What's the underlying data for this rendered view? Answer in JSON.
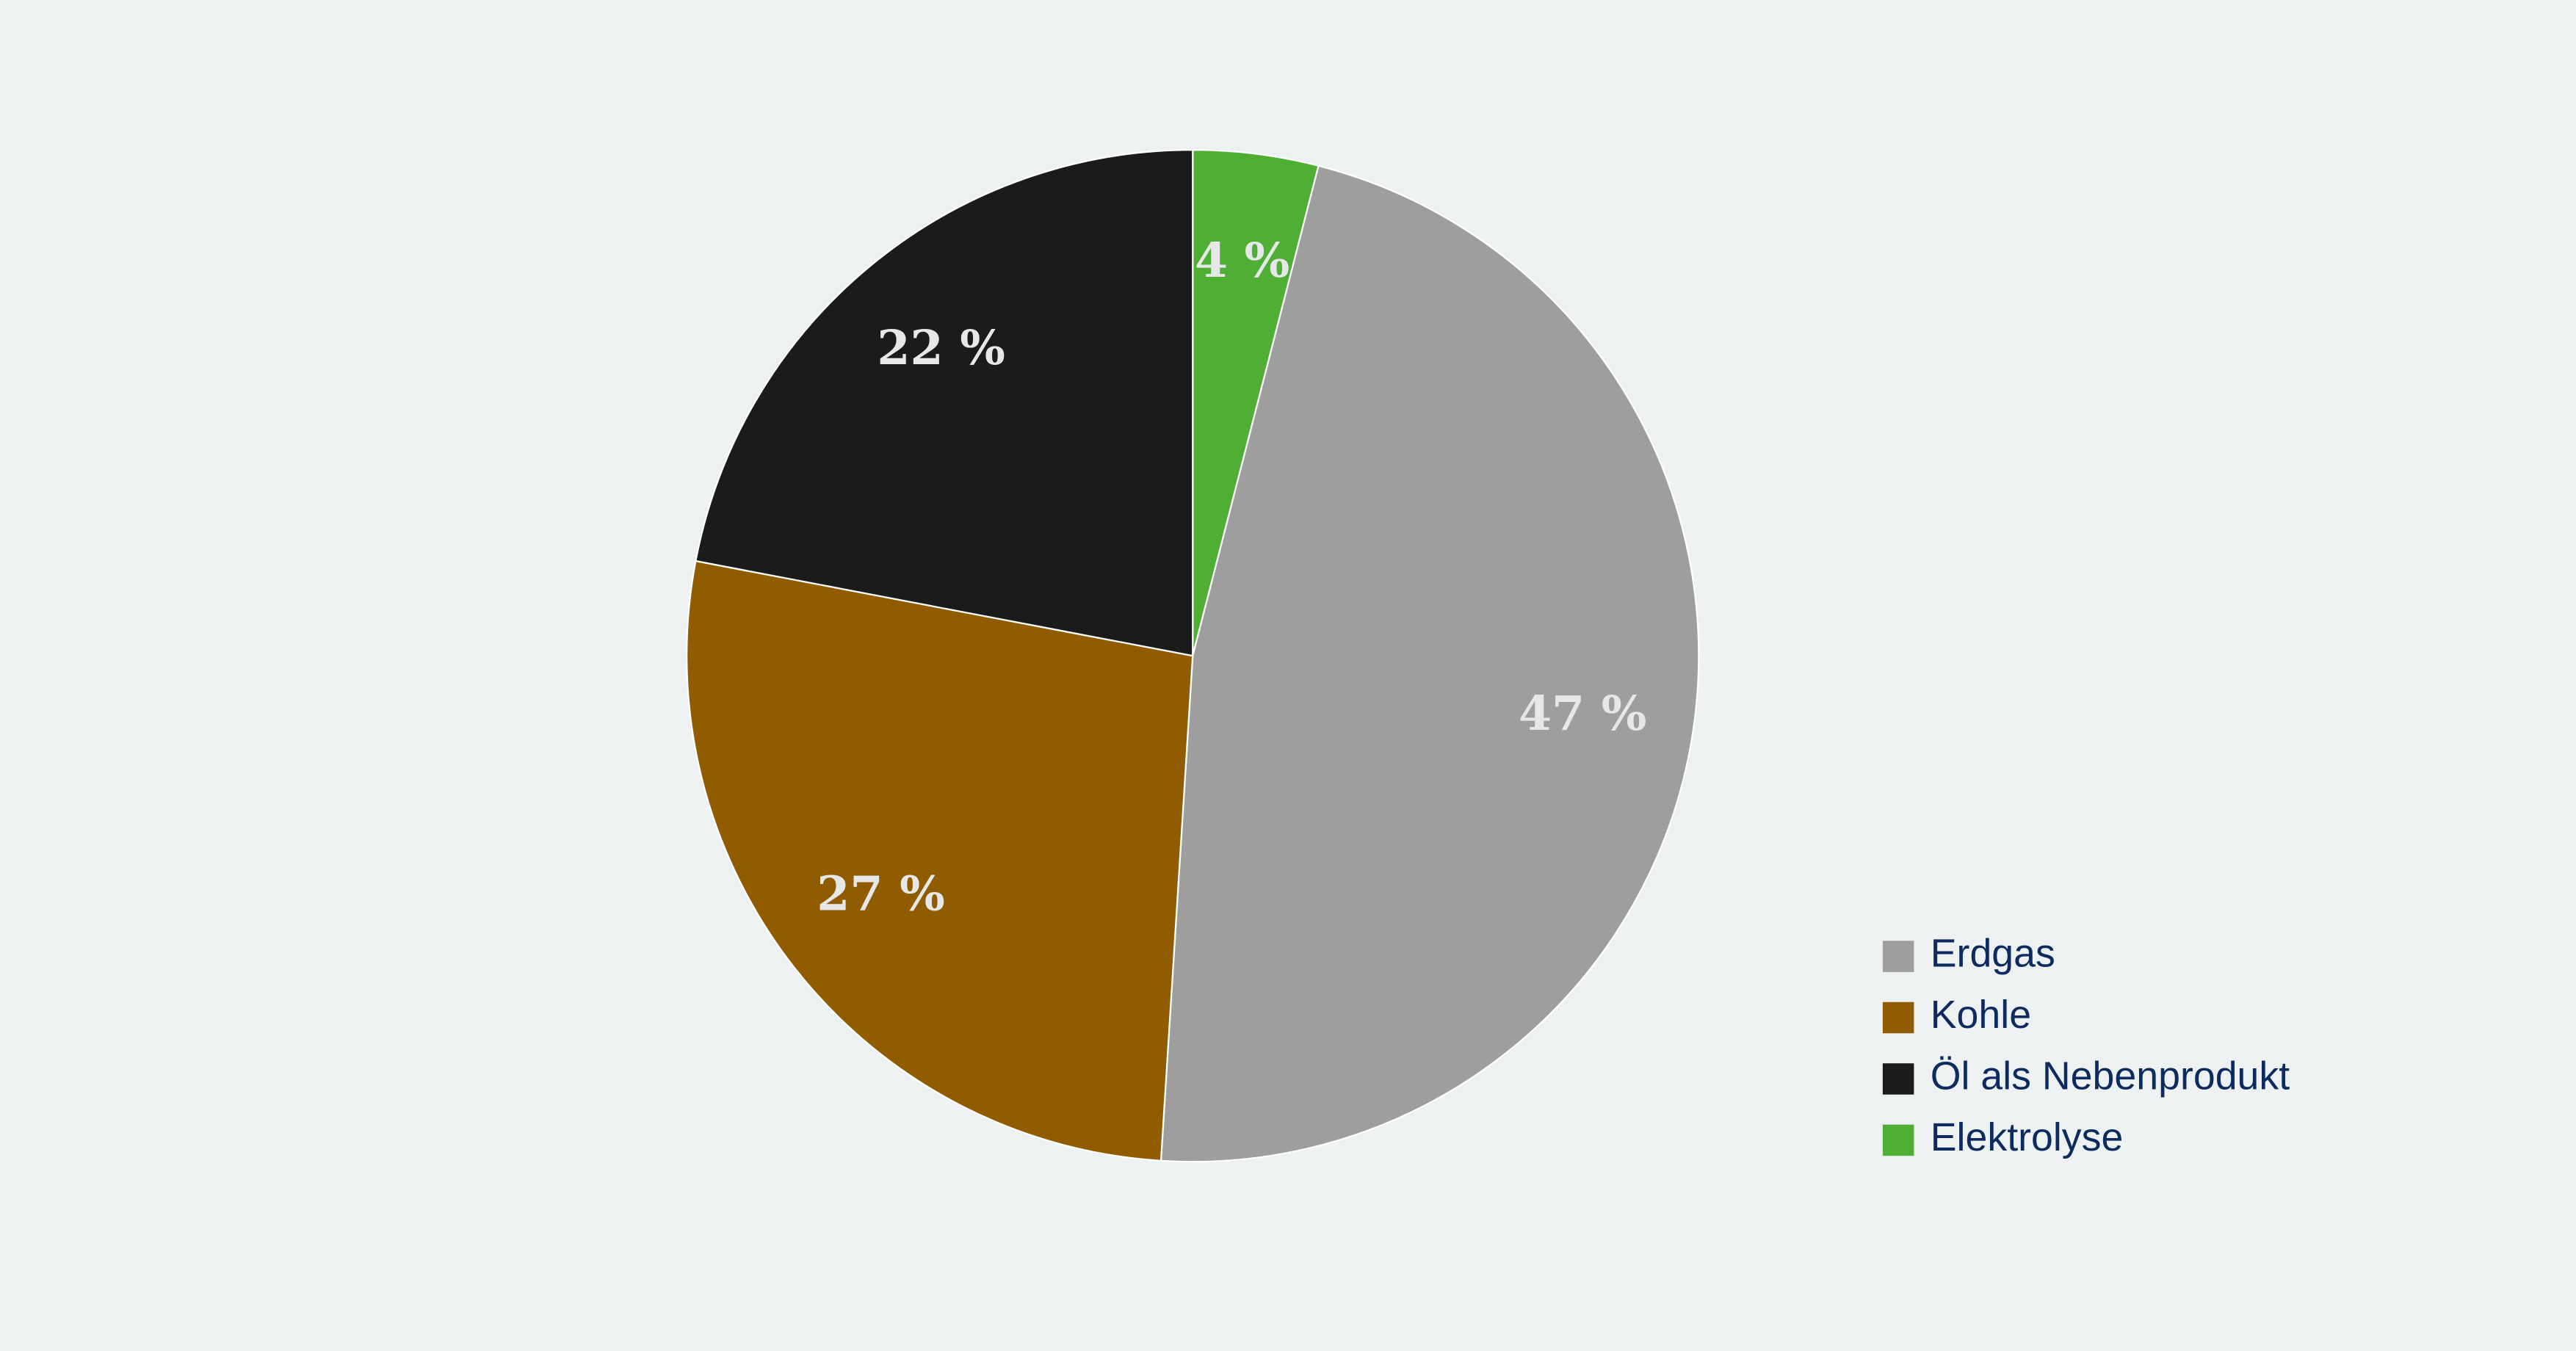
{
  "chart_data": {
    "type": "pie",
    "categories": [
      "Erdgas",
      "Kohle",
      "Öl als Nebenprodukt",
      "Elektrolyse"
    ],
    "values": [
      47,
      27,
      22,
      4
    ],
    "value_labels": [
      "47 %",
      "27 %",
      "22 %",
      "4 %"
    ],
    "colors": [
      "#9d9e9d",
      "#915b00",
      "#1b1b1b",
      "#4faf34"
    ],
    "legend": "bottom-right"
  }
}
